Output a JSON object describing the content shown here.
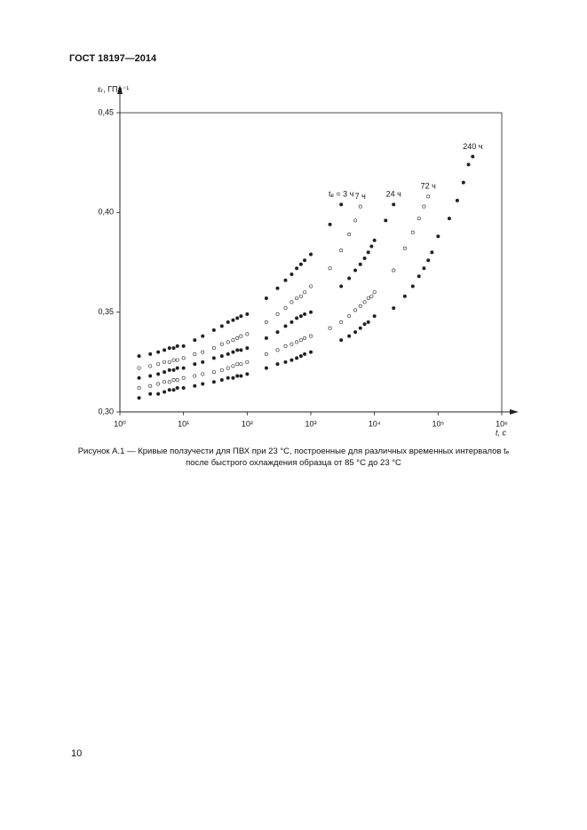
{
  "header": {
    "title": "ГОСТ 18197—2014"
  },
  "chart_data": {
    "type": "scatter",
    "y_label": "εᵣ, ГПа⁻¹",
    "x_label": "t, с",
    "xscale": "log",
    "xlim": [
      1,
      1000000
    ],
    "ylim": [
      0.3,
      0.45
    ],
    "xticks": [
      {
        "value": 1,
        "label": "10⁰"
      },
      {
        "value": 10,
        "label": "10¹"
      },
      {
        "value": 100,
        "label": "10²"
      },
      {
        "value": 1000,
        "label": "10³"
      },
      {
        "value": 10000,
        "label": "10⁴"
      },
      {
        "value": 100000,
        "label": "10⁵"
      },
      {
        "value": 1000000,
        "label": "10⁶"
      }
    ],
    "yticks": [
      {
        "value": 0.3,
        "label": "0,30"
      },
      {
        "value": 0.35,
        "label": "0,35"
      },
      {
        "value": 0.4,
        "label": "0,40"
      },
      {
        "value": 0.45,
        "label": "0,45"
      }
    ],
    "series": [
      {
        "name": "tₑ = 3 ч",
        "color": "#222",
        "marker": "filled",
        "x": [
          2,
          3,
          4,
          5,
          6,
          7,
          8,
          10,
          15,
          20,
          30,
          40,
          50,
          60,
          70,
          80,
          100,
          200,
          300,
          400,
          500,
          600,
          700,
          800,
          1000,
          2000,
          3000
        ],
        "values": [
          0.328,
          0.329,
          0.33,
          0.331,
          0.332,
          0.332,
          0.333,
          0.333,
          0.336,
          0.338,
          0.341,
          0.343,
          0.345,
          0.346,
          0.347,
          0.348,
          0.349,
          0.357,
          0.362,
          0.366,
          0.369,
          0.372,
          0.374,
          0.376,
          0.379,
          0.394,
          0.404
        ]
      },
      {
        "name": "7 ч",
        "color": "#222",
        "marker": "open",
        "x": [
          2,
          3,
          4,
          5,
          6,
          7,
          8,
          10,
          15,
          20,
          30,
          40,
          50,
          60,
          70,
          80,
          100,
          200,
          300,
          400,
          500,
          600,
          700,
          800,
          1000,
          2000,
          3000,
          4000,
          5000,
          6000
        ],
        "values": [
          0.322,
          0.323,
          0.324,
          0.325,
          0.325,
          0.326,
          0.326,
          0.327,
          0.329,
          0.33,
          0.332,
          0.334,
          0.335,
          0.336,
          0.337,
          0.338,
          0.339,
          0.345,
          0.349,
          0.352,
          0.355,
          0.357,
          0.358,
          0.36,
          0.363,
          0.372,
          0.381,
          0.389,
          0.396,
          0.403
        ]
      },
      {
        "name": "24 ч",
        "color": "#222",
        "marker": "filled",
        "x": [
          2,
          3,
          4,
          5,
          6,
          7,
          8,
          10,
          15,
          20,
          30,
          40,
          50,
          60,
          70,
          80,
          100,
          200,
          300,
          400,
          500,
          600,
          700,
          800,
          1000,
          3000,
          4000,
          5000,
          6000,
          7000,
          8000,
          9000,
          10000,
          15000,
          20000
        ],
        "values": [
          0.317,
          0.318,
          0.319,
          0.32,
          0.321,
          0.321,
          0.322,
          0.322,
          0.324,
          0.325,
          0.327,
          0.328,
          0.329,
          0.33,
          0.331,
          0.331,
          0.332,
          0.337,
          0.34,
          0.343,
          0.345,
          0.347,
          0.348,
          0.349,
          0.35,
          0.363,
          0.367,
          0.371,
          0.374,
          0.377,
          0.38,
          0.383,
          0.386,
          0.396,
          0.404
        ]
      },
      {
        "name": "72 ч",
        "color": "#222",
        "marker": "open",
        "x": [
          2,
          3,
          4,
          5,
          6,
          7,
          8,
          10,
          15,
          20,
          30,
          40,
          50,
          60,
          70,
          80,
          100,
          200,
          300,
          400,
          500,
          600,
          700,
          800,
          1000,
          2000,
          3000,
          4000,
          5000,
          6000,
          7000,
          8000,
          9000,
          10000,
          20000,
          30000,
          40000,
          50000,
          60000,
          70000
        ],
        "values": [
          0.312,
          0.313,
          0.314,
          0.315,
          0.315,
          0.316,
          0.316,
          0.317,
          0.318,
          0.319,
          0.32,
          0.321,
          0.322,
          0.323,
          0.324,
          0.324,
          0.325,
          0.329,
          0.331,
          0.333,
          0.334,
          0.335,
          0.336,
          0.337,
          0.338,
          0.342,
          0.345,
          0.348,
          0.351,
          0.353,
          0.355,
          0.357,
          0.358,
          0.36,
          0.371,
          0.382,
          0.39,
          0.397,
          0.403,
          0.408
        ]
      },
      {
        "name": "240 ч",
        "color": "#222",
        "marker": "filled",
        "x": [
          2,
          3,
          4,
          5,
          6,
          7,
          8,
          10,
          15,
          20,
          30,
          40,
          50,
          60,
          70,
          80,
          100,
          200,
          300,
          400,
          500,
          600,
          700,
          800,
          1000,
          3000,
          4000,
          5000,
          6000,
          7000,
          8000,
          10000,
          20000,
          30000,
          40000,
          50000,
          60000,
          70000,
          80000,
          100000,
          150000,
          200000,
          250000,
          300000,
          350000
        ],
        "values": [
          0.307,
          0.309,
          0.309,
          0.31,
          0.311,
          0.311,
          0.312,
          0.312,
          0.313,
          0.314,
          0.315,
          0.316,
          0.317,
          0.317,
          0.318,
          0.318,
          0.319,
          0.322,
          0.324,
          0.325,
          0.326,
          0.327,
          0.328,
          0.329,
          0.33,
          0.336,
          0.338,
          0.34,
          0.342,
          0.344,
          0.345,
          0.348,
          0.352,
          0.358,
          0.363,
          0.368,
          0.372,
          0.376,
          0.38,
          0.388,
          0.397,
          0.406,
          0.415,
          0.424,
          0.428
        ]
      }
    ]
  },
  "caption": {
    "lines": [
      "Рисунок А.1 — Кривые ползучести для ПВХ при 23 °С, построенные для различных временных интервалов tₑ",
      "после быстрого охлаждения образца от 85 °С до 23 °С"
    ]
  },
  "footer": {
    "page": 10
  }
}
